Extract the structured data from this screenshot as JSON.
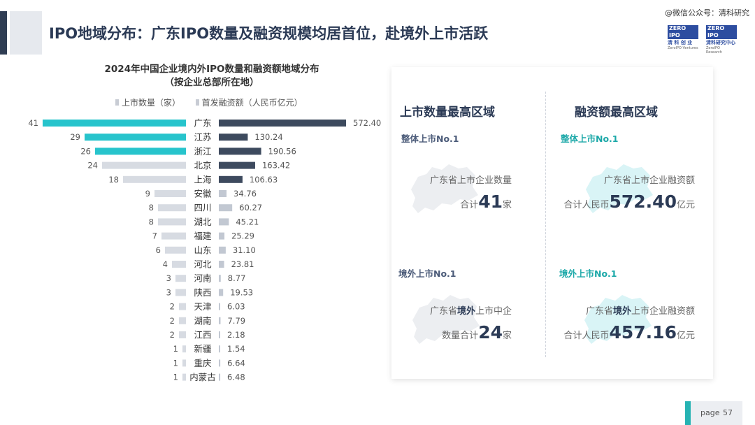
{
  "header": {
    "title": "IPO地域分布：广东IPO数量及融资规模均居首位，赴境外上市活跃",
    "watermark": "@微信公众号：清科研究"
  },
  "logos": [
    {
      "brand": "ZERO IPO",
      "cn": "清 科 创 业",
      "en": "ZeroIPO Ventures"
    },
    {
      "brand": "ZERO IPO",
      "cn": "清科研究中心",
      "en": "ZeroIPO Research"
    }
  ],
  "chart_data": {
    "type": "bar",
    "title": "2024年中国企业境内外IPO数量和融资额地域分布",
    "subtitle": "（按企业总部所在地）",
    "categories": [
      "广东",
      "江苏",
      "浙江",
      "北京",
      "上海",
      "安徽",
      "四川",
      "湖北",
      "福建",
      "山东",
      "河北",
      "河南",
      "陕西",
      "天津",
      "湖南",
      "江西",
      "新疆",
      "重庆",
      "内蒙古"
    ],
    "series": [
      {
        "name": "上市数量（家）",
        "values": [
          41,
          29,
          26,
          24,
          18,
          9,
          8,
          8,
          7,
          6,
          4,
          3,
          3,
          2,
          2,
          2,
          1,
          1,
          1
        ]
      },
      {
        "name": "首发融资额（人民币亿元）",
        "values": [
          572.4,
          130.24,
          190.56,
          163.42,
          106.63,
          34.76,
          60.27,
          45.21,
          25.29,
          31.1,
          23.81,
          8.77,
          19.53,
          6.03,
          7.79,
          2.18,
          1.54,
          6.64,
          6.48
        ]
      }
    ],
    "value_labels": {
      "count": [
        "41",
        "29",
        "26",
        "24",
        "18",
        "9",
        "8",
        "8",
        "7",
        "6",
        "4",
        "3",
        "3",
        "2",
        "2",
        "2",
        "1",
        "1",
        "1"
      ],
      "amount": [
        "572.40",
        "130.24",
        "190.56",
        "163.42",
        "106.63",
        "34.76",
        "60.27",
        "45.21",
        "25.29",
        "31.10",
        "23.81",
        "8.77",
        "19.53",
        "6.03",
        "7.79",
        "2.18",
        "1.54",
        "6.64",
        "6.48"
      ]
    },
    "highlight_count_rows": 3,
    "highlight_amount_rows": 5,
    "colors": {
      "count_highlight": "#27c4cc",
      "count_normal": "#d7dbe2",
      "amount_highlight": "#3d4a5e",
      "amount_normal": "#c2c8d2"
    },
    "legend_position": "top",
    "grid": false
  },
  "panel": {
    "col1": {
      "heading": "上市数量最高区域",
      "card1": {
        "sub": "整体上市No.1",
        "line1": "广东省上市企业数量",
        "pre": "合计",
        "num": "41",
        "unit": "家"
      },
      "card2": {
        "sub": "境外上市No.1",
        "line1_a": "广东省",
        "line1_b": "境外",
        "line1_c": "上市中企",
        "pre": "数量合计",
        "num": "24",
        "unit": "家"
      }
    },
    "col2": {
      "heading": "融资额最高区域",
      "card1": {
        "sub": "整体上市No.1",
        "line1": "广东省上市企业融资额",
        "pre": "合计人民币",
        "num": "572.40",
        "unit": "亿元"
      },
      "card2": {
        "sub": "境外上市No.1",
        "line1_a": "广东省",
        "line1_b": "境外",
        "line1_c": "上市企业融资额",
        "pre": "合计人民币",
        "num": "457.16",
        "unit": "亿元"
      }
    }
  },
  "footer": {
    "page_label": "page",
    "page_number": "57"
  }
}
